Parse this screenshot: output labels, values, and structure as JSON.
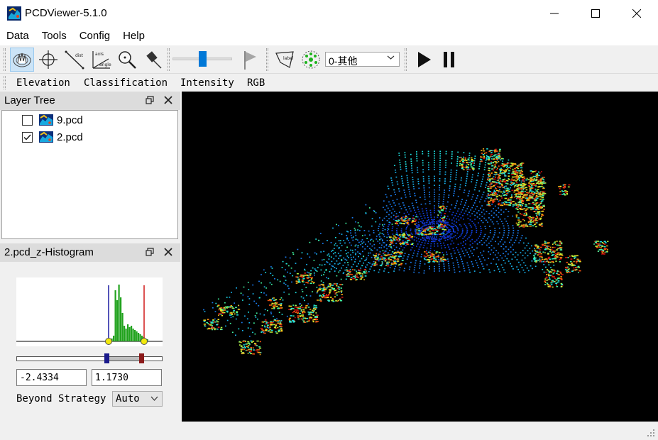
{
  "window": {
    "title": "PCDViewer-5.1.0",
    "controls": {
      "minimize": "minimize-icon",
      "maximize": "maximize-icon",
      "close": "close-icon"
    }
  },
  "menu": {
    "items": [
      "Data",
      "Tools",
      "Config",
      "Help"
    ]
  },
  "toolbar": {
    "tools": [
      {
        "id": "rotate",
        "icon": "rotate-view-icon",
        "active": true
      },
      {
        "id": "pick-point",
        "icon": "crosshair-icon",
        "active": false
      },
      {
        "id": "distance",
        "icon": "measure-distance-icon",
        "label": "dist",
        "active": false
      },
      {
        "id": "axis-angle",
        "icon": "axis-angle-icon",
        "label_top": "axis",
        "label_bottom": "angle",
        "active": false
      },
      {
        "id": "zoom",
        "icon": "magnifier-icon",
        "active": false
      },
      {
        "id": "pin",
        "icon": "pin-icon",
        "active": false
      }
    ],
    "slider_level": 0.5,
    "flag_icon": "flag-icon",
    "label_tool": {
      "icon": "label-polygon-icon",
      "text": "label"
    },
    "cluster_tool_icon": "cluster-icon",
    "class_select": {
      "value": "0-其他"
    },
    "play_icon": "play-icon",
    "pause_icon": "pause-icon"
  },
  "color_modes": [
    "Elevation",
    "Classification",
    "Intensity",
    "RGB"
  ],
  "layer_tree": {
    "title": "Layer Tree",
    "items": [
      {
        "label": "9.pcd",
        "checked": false
      },
      {
        "label": "2.pcd",
        "checked": true
      }
    ]
  },
  "histogram": {
    "title": "2.pcd_z-Histogram",
    "min_value": "-2.4334",
    "max_value": "1.1730",
    "beyond_label": "Beyond Strategy",
    "beyond_value": "Auto",
    "colors": {
      "bars": "#22a31e",
      "min_line": "#1a1aa0",
      "max_line": "#d01818",
      "handle": "#f2e90c"
    }
  },
  "viewport": {
    "background": "#000000"
  }
}
